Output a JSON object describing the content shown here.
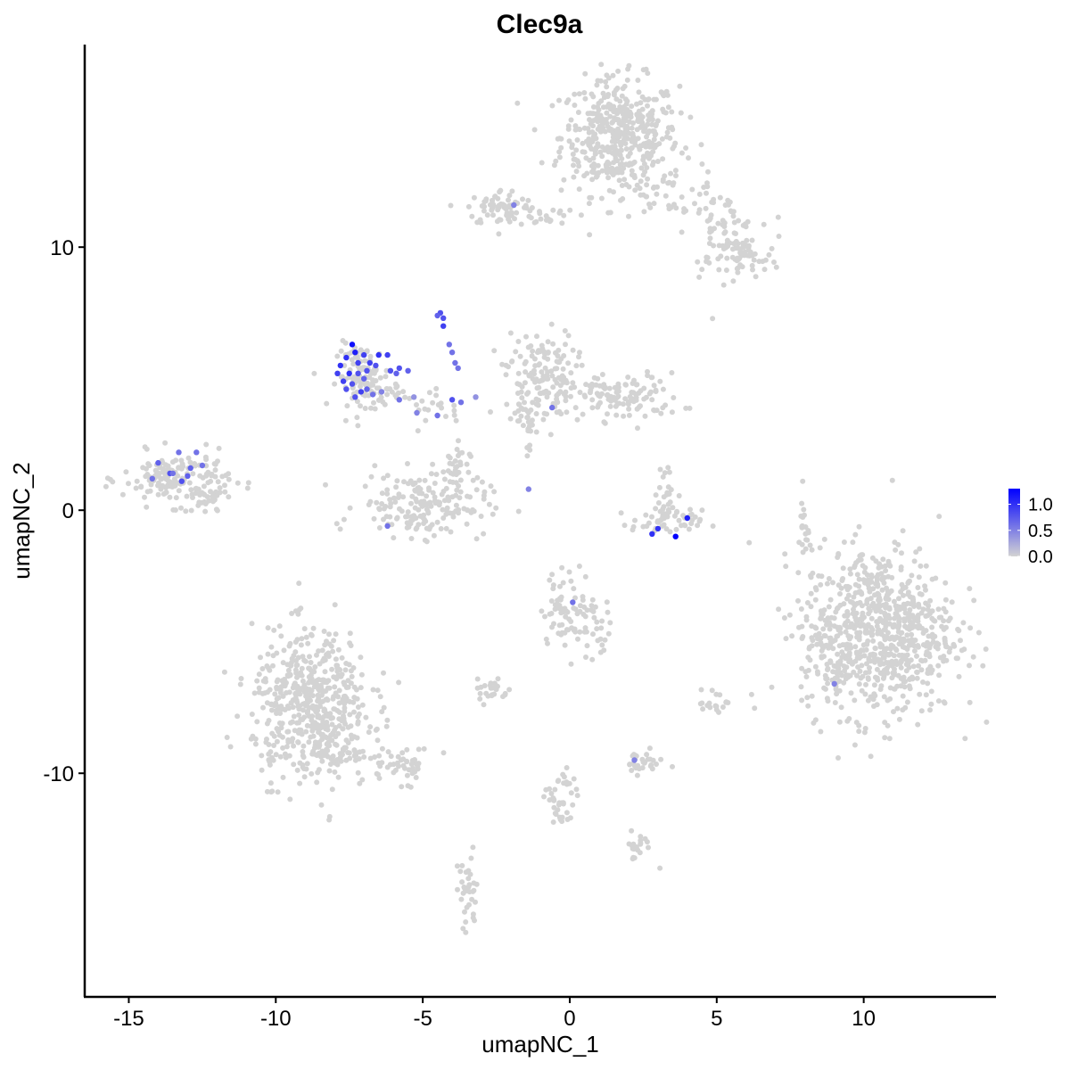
{
  "chart_data": {
    "type": "scatter",
    "title": "Clec9a",
    "xlabel": "umapNC_1",
    "ylabel": "umapNC_2",
    "xlim": [
      -16.5,
      14.5
    ],
    "ylim": [
      -18.5,
      17.7
    ],
    "x_ticks": [
      -15,
      -10,
      -5,
      0,
      5,
      10
    ],
    "x_tick_labels": [
      "-15",
      "-10",
      "-5",
      "0",
      "5",
      "10"
    ],
    "y_ticks": [
      -10,
      0,
      10
    ],
    "y_tick_labels": [
      "-10",
      "0",
      "10"
    ],
    "grid": false,
    "colors": {
      "low": "#d3d3d3",
      "high": "#0000ff"
    },
    "legend": {
      "position": "right",
      "type": "colorbar",
      "range": [
        0,
        1.3
      ],
      "tick_values": [
        0.0,
        0.5,
        1.0
      ],
      "tick_labels": [
        "0.0",
        "0.5",
        "1.0"
      ]
    },
    "clusters": [
      {
        "cx": 1.7,
        "cy": 14.2,
        "sx": 1.0,
        "sy": 1.1,
        "n": 460
      },
      {
        "cx": 3.5,
        "cy": 12.2,
        "sx": 0.9,
        "sy": 0.5,
        "n": 40
      },
      {
        "cx": 5.2,
        "cy": 10.5,
        "sx": 0.6,
        "sy": 0.8,
        "n": 70
      },
      {
        "cx": 5.9,
        "cy": 9.6,
        "sx": 0.6,
        "sy": 0.4,
        "n": 50
      },
      {
        "cx": -2.3,
        "cy": 11.5,
        "sx": 0.6,
        "sy": 0.35,
        "n": 70
      },
      {
        "cx": -0.8,
        "cy": 11.2,
        "sx": 0.5,
        "sy": 0.2,
        "n": 20
      },
      {
        "cx": -1.0,
        "cy": 5.2,
        "sx": 0.6,
        "sy": 0.8,
        "n": 130
      },
      {
        "cx": 1.8,
        "cy": 4.3,
        "sx": 1.0,
        "sy": 0.45,
        "n": 120
      },
      {
        "cx": -1.5,
        "cy": 3.5,
        "sx": 0.4,
        "sy": 0.6,
        "n": 40
      },
      {
        "cx": -7.0,
        "cy": 5.1,
        "sx": 0.45,
        "sy": 0.6,
        "n": 90
      },
      {
        "cx": -6.5,
        "cy": 4.4,
        "sx": 0.5,
        "sy": 0.25,
        "n": 25
      },
      {
        "cx": -4.4,
        "cy": 3.9,
        "sx": 0.6,
        "sy": 0.3,
        "n": 20
      },
      {
        "cx": -13.4,
        "cy": 1.2,
        "sx": 0.9,
        "sy": 0.5,
        "n": 150
      },
      {
        "cx": -12.4,
        "cy": 0.4,
        "sx": 0.4,
        "sy": 0.3,
        "n": 30
      },
      {
        "cx": -5.0,
        "cy": 0.2,
        "sx": 1.1,
        "sy": 0.6,
        "n": 170
      },
      {
        "cx": -4.0,
        "cy": 1.4,
        "sx": 0.3,
        "sy": 0.6,
        "n": 40
      },
      {
        "cx": 3.3,
        "cy": -0.5,
        "sx": 0.6,
        "sy": 0.25,
        "n": 50
      },
      {
        "cx": 3.2,
        "cy": 0.6,
        "sx": 0.25,
        "sy": 0.6,
        "n": 25
      },
      {
        "cx": 10.5,
        "cy": -4.6,
        "sx": 1.3,
        "sy": 1.6,
        "n": 780
      },
      {
        "cx": 8.9,
        "cy": -5.8,
        "sx": 0.4,
        "sy": 0.7,
        "n": 40
      },
      {
        "cx": 0.0,
        "cy": -3.7,
        "sx": 0.5,
        "sy": 0.7,
        "n": 70
      },
      {
        "cx": 0.9,
        "cy": -4.6,
        "sx": 0.35,
        "sy": 0.6,
        "n": 25
      },
      {
        "cx": -2.7,
        "cy": -6.8,
        "sx": 0.3,
        "sy": 0.3,
        "n": 25
      },
      {
        "cx": -8.8,
        "cy": -7.4,
        "sx": 1.0,
        "sy": 1.4,
        "n": 520
      },
      {
        "cx": -8.0,
        "cy": -9.2,
        "sx": 0.6,
        "sy": 0.4,
        "n": 50
      },
      {
        "cx": -5.7,
        "cy": -9.7,
        "sx": 0.6,
        "sy": 0.35,
        "n": 45
      },
      {
        "cx": 2.4,
        "cy": -9.6,
        "sx": 0.4,
        "sy": 0.2,
        "n": 30
      },
      {
        "cx": -0.3,
        "cy": -11.2,
        "sx": 0.25,
        "sy": 0.7,
        "n": 40
      },
      {
        "cx": 2.3,
        "cy": -12.7,
        "sx": 0.3,
        "sy": 0.3,
        "n": 20
      },
      {
        "cx": -3.5,
        "cy": -14.7,
        "sx": 0.2,
        "sy": 0.8,
        "n": 35
      },
      {
        "cx": 5.0,
        "cy": -7.3,
        "sx": 0.3,
        "sy": 0.25,
        "n": 20
      },
      {
        "cx": 8.0,
        "cy": -0.5,
        "sx": 0.1,
        "sy": 0.7,
        "n": 18
      }
    ],
    "points": [
      [
        -7.4,
        6.3,
        1.2
      ],
      [
        -7.3,
        6.0,
        1.1
      ],
      [
        -7.6,
        5.8,
        1.0
      ],
      [
        -7.8,
        5.5,
        1.0
      ],
      [
        -7.2,
        5.6,
        0.9
      ],
      [
        -7.9,
        5.2,
        0.9
      ],
      [
        -7.5,
        5.2,
        1.0
      ],
      [
        -7.7,
        4.9,
        0.9
      ],
      [
        -7.4,
        4.8,
        0.8
      ],
      [
        -7.1,
        4.5,
        0.9
      ],
      [
        -7.3,
        4.3,
        0.8
      ],
      [
        -6.9,
        4.6,
        0.7
      ],
      [
        -7.6,
        4.6,
        0.8
      ],
      [
        -7.0,
        5.9,
        0.9
      ],
      [
        -6.8,
        5.6,
        0.9
      ],
      [
        -6.5,
        5.9,
        1.0
      ],
      [
        -6.2,
        5.9,
        0.9
      ],
      [
        -6.6,
        5.5,
        0.8
      ],
      [
        -6.1,
        5.3,
        0.8
      ],
      [
        -5.8,
        5.4,
        0.8
      ],
      [
        -5.5,
        5.3,
        0.7
      ],
      [
        -5.9,
        5.2,
        0.7
      ],
      [
        -7.2,
        5.2,
        0.8
      ],
      [
        -7.0,
        5.0,
        0.7
      ],
      [
        -6.9,
        5.3,
        0.8
      ],
      [
        -6.7,
        4.4,
        0.6
      ],
      [
        -6.4,
        4.5,
        0.5
      ],
      [
        -4.4,
        7.5,
        0.8
      ],
      [
        -4.3,
        7.3,
        0.8
      ],
      [
        -4.3,
        7.0,
        0.9
      ],
      [
        -4.5,
        7.4,
        0.7
      ],
      [
        -4.1,
        6.3,
        0.6
      ],
      [
        -4.0,
        6.0,
        0.6
      ],
      [
        -3.9,
        5.6,
        0.6
      ],
      [
        -3.8,
        5.4,
        0.6
      ],
      [
        -4.0,
        4.2,
        0.8
      ],
      [
        -3.7,
        4.1,
        0.6
      ],
      [
        -4.5,
        3.6,
        0.6
      ],
      [
        -5.2,
        3.7,
        0.5
      ],
      [
        -5.8,
        4.2,
        0.6
      ],
      [
        -5.3,
        4.3,
        0.4
      ],
      [
        -3.2,
        4.3,
        0.4
      ],
      [
        -1.9,
        11.6,
        0.5
      ],
      [
        -0.6,
        3.9,
        0.6
      ],
      [
        -1.4,
        0.8,
        0.5
      ],
      [
        -6.2,
        -0.6,
        0.6
      ],
      [
        -14.0,
        1.8,
        0.7
      ],
      [
        -13.6,
        1.4,
        0.8
      ],
      [
        -13.2,
        1.1,
        0.8
      ],
      [
        -12.9,
        1.6,
        0.7
      ],
      [
        -13.3,
        2.2,
        0.6
      ],
      [
        -12.7,
        2.2,
        0.6
      ],
      [
        -14.2,
        1.2,
        0.6
      ],
      [
        -13.0,
        1.3,
        0.7
      ],
      [
        -12.5,
        1.7,
        0.6
      ],
      [
        -13.5,
        1.4,
        0.6
      ],
      [
        3.6,
        -1.0,
        1.3
      ],
      [
        2.8,
        -0.9,
        1.0
      ],
      [
        3.0,
        -0.7,
        1.0
      ],
      [
        4.0,
        -0.3,
        1.1
      ],
      [
        0.1,
        -3.5,
        0.6
      ],
      [
        9.0,
        -6.6,
        0.5
      ],
      [
        2.2,
        -9.5,
        0.5
      ]
    ]
  }
}
